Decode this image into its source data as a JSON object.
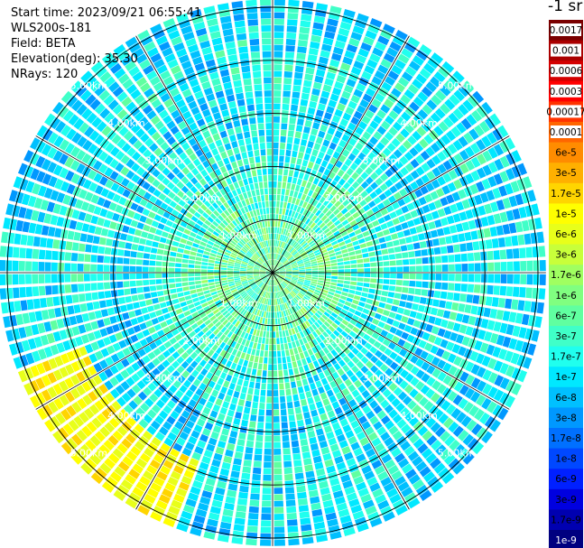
{
  "header": {
    "start_time": "Start time: 2023/09/21 06:55:41",
    "device": "WLS200s-181",
    "field": "Field: BETA",
    "elevation": "Elevation(deg): 35.30",
    "nrays": "NRays: 120"
  },
  "colorbar": {
    "unit_title": "-1 sr",
    "labels": [
      "0.0017",
      "0.001",
      "0.0006",
      "0.0003",
      "0.00017",
      "0.0001",
      "6e-5",
      "3e-5",
      "1.7e-5",
      "1e-5",
      "6e-6",
      "3e-6",
      "1.7e-6",
      "1e-6",
      "6e-7",
      "3e-7",
      "1.7e-7",
      "1e-7",
      "6e-8",
      "3e-8",
      "1.7e-8",
      "1e-8",
      "6e-9",
      "3e-9",
      "1.7e-9",
      "1e-9"
    ],
    "colors": [
      "#7a0000",
      "#aa0000",
      "#d40000",
      "#ff0000",
      "#ff3300",
      "#ff6600",
      "#ff8c00",
      "#ffb000",
      "#ffd500",
      "#ffff00",
      "#e8ff1a",
      "#c8ff3a",
      "#a0ff60",
      "#80ff80",
      "#60ffa0",
      "#40ffc8",
      "#20ffee",
      "#00e8ff",
      "#00c0ff",
      "#0098ff",
      "#0070ff",
      "#0048ff",
      "#0020ff",
      "#0000e0",
      "#0000b0",
      "#000080"
    ],
    "label_dark_text_indices": [
      0,
      1,
      2,
      3,
      4,
      5
    ],
    "label_white_text_indices": [
      25
    ]
  },
  "chart_data": {
    "type": "polar-ppi",
    "variable": "BETA",
    "elevation_deg": 35.3,
    "n_rays": 120,
    "range_rings_km": [
      1,
      2,
      3,
      4,
      5
    ],
    "range_labels": [
      "1.00km",
      "2.00km",
      "3.00km",
      "4.00km",
      "5.00km"
    ],
    "max_range_km": 5.15,
    "color_scale": "log",
    "value_range": [
      1e-09,
      0.0017
    ],
    "range_profile_median_log10": [
      [
        0.0,
        -6.2
      ],
      [
        1.0,
        -6.3
      ],
      [
        2.0,
        -6.6
      ],
      [
        3.0,
        -6.9
      ],
      [
        4.0,
        -6.8
      ],
      [
        4.5,
        -6.9
      ],
      [
        5.15,
        -7.0
      ]
    ],
    "enhanced_sector": {
      "azimuth_deg": [
        200,
        250
      ],
      "range_km": [
        3.8,
        5.15
      ],
      "log10_value": -5.1
    }
  }
}
